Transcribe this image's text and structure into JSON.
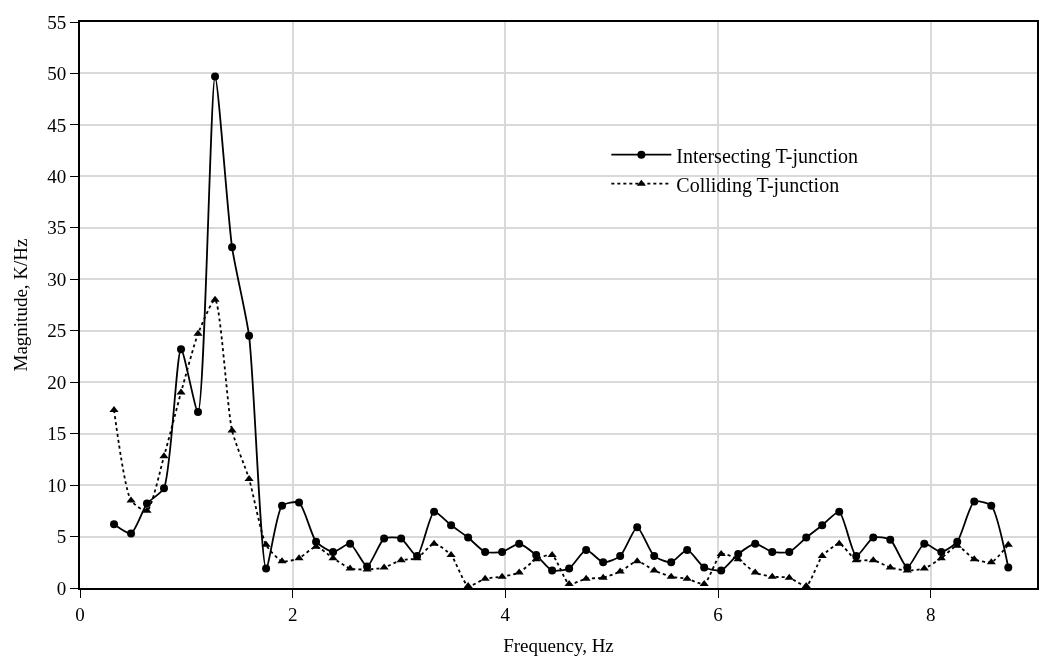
{
  "chart_data": {
    "type": "line",
    "xlabel": "Frequency, Hz",
    "ylabel": "Magnitude, K/Hz",
    "x": [
      0.32,
      0.48,
      0.63,
      0.79,
      0.95,
      1.11,
      1.27,
      1.43,
      1.59,
      1.75,
      1.9,
      2.06,
      2.22,
      2.38,
      2.54,
      2.7,
      2.86,
      3.02,
      3.17,
      3.33,
      3.49,
      3.65,
      3.81,
      3.97,
      4.13,
      4.29,
      4.44,
      4.6,
      4.76,
      4.92,
      5.08,
      5.24,
      5.4,
      5.56,
      5.71,
      5.87,
      6.03,
      6.19,
      6.35,
      6.51,
      6.67,
      6.83,
      6.98,
      7.14,
      7.3,
      7.46,
      7.62,
      7.78,
      7.94,
      8.1,
      8.25,
      8.41,
      8.57,
      8.73
    ],
    "series": [
      {
        "name": "Intersecting T-junction",
        "color": "#000000",
        "marker": "circle",
        "line_style": "solid",
        "values": [
          6.2,
          5.3,
          8.2,
          9.7,
          23.2,
          17.1,
          49.7,
          33.1,
          24.5,
          1.9,
          8.0,
          8.3,
          4.5,
          3.5,
          4.3,
          2.1,
          4.8,
          4.8,
          3.1,
          7.4,
          6.1,
          4.9,
          3.5,
          3.5,
          4.3,
          3.2,
          1.7,
          1.9,
          3.7,
          2.5,
          3.1,
          5.9,
          3.1,
          2.5,
          3.7,
          2.0,
          1.7,
          3.3,
          4.3,
          3.5,
          3.5,
          4.9,
          6.1,
          7.4,
          3.1,
          4.9,
          4.7,
          2.0,
          4.3,
          3.5,
          4.5,
          8.4,
          8.0,
          2.0
        ]
      },
      {
        "name": "Colliding T-junction",
        "color": "#000000",
        "marker": "triangle",
        "line_style": "dotted",
        "values": [
          17.3,
          8.5,
          7.5,
          12.8,
          19.0,
          24.7,
          28.0,
          15.3,
          10.6,
          4.2,
          2.6,
          2.9,
          4.0,
          2.9,
          1.9,
          1.8,
          2.0,
          2.7,
          2.9,
          4.3,
          3.2,
          0.2,
          0.9,
          1.1,
          1.5,
          2.8,
          3.2,
          0.4,
          0.9,
          1.0,
          1.6,
          2.6,
          1.7,
          1.1,
          0.9,
          0.4,
          3.3,
          2.8,
          1.5,
          1.1,
          1.0,
          0.2,
          3.1,
          4.3,
          2.7,
          2.7,
          2.0,
          1.7,
          1.9,
          2.9,
          4.1,
          2.8,
          2.5,
          4.2
        ]
      }
    ],
    "xlim": [
      0,
      9
    ],
    "xticks": [
      0,
      2,
      4,
      6,
      8
    ],
    "ylim": [
      0,
      55
    ],
    "yticks": [
      0,
      5,
      10,
      15,
      20,
      25,
      30,
      35,
      40,
      45,
      50,
      55
    ],
    "grid": true,
    "legend": "top right"
  }
}
